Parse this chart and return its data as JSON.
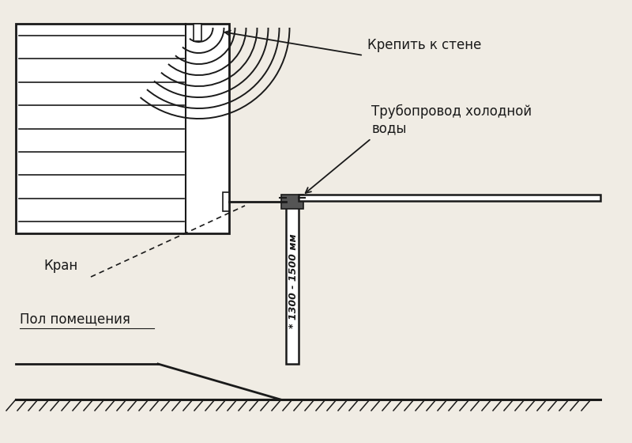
{
  "bg_color": "#f0ece4",
  "line_color": "#1a1a1a",
  "text_color": "#1a1a1a",
  "label_krepit": "Крепить к стене",
  "label_truba": "Трубопровод холодной\nводы",
  "label_kran": "Кран",
  "label_pol": "Пол помещения",
  "label_dim": "* 1300 - 1500 мм",
  "fig_width": 8.0,
  "fig_height": 5.6
}
